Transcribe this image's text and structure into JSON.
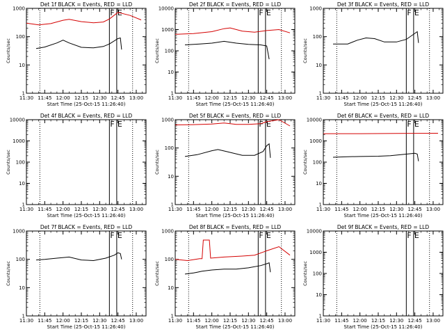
{
  "chart_data": [
    {
      "type": "line",
      "title": "Det 1f BLACK = Events, RED = LLD",
      "ylabel": "Counts/sec",
      "xlabel": "Start Time (25-Oct-15 11:26:40)",
      "xlim": [
        "11:30",
        "13:08"
      ],
      "xticks": [
        "11:30",
        "11:45",
        "12:00",
        "12:15",
        "12:30",
        "12:45",
        "13:00"
      ],
      "ylog": true,
      "ylim": [
        1,
        1000
      ],
      "yticks": [
        "1",
        "10",
        "100",
        "1000"
      ],
      "dotted_lines": [
        "11:41",
        "12:57"
      ],
      "solid_lines": [
        "12:38",
        "12:44"
      ],
      "markers": [
        {
          "at": "12:38",
          "text": "F"
        },
        {
          "at": "12:44",
          "text": "E"
        }
      ],
      "series": [
        {
          "color": "#d40000",
          "points": [
            [
              "11:30",
              300
            ],
            [
              "11:40",
              260
            ],
            [
              "11:50",
              290
            ],
            [
              "12:00",
              380
            ],
            [
              "12:05",
              410
            ],
            [
              "12:15",
              340
            ],
            [
              "12:25",
              310
            ],
            [
              "12:33",
              330
            ],
            [
              "12:38",
              420
            ],
            [
              "12:45",
              720
            ],
            [
              "12:55",
              560
            ],
            [
              "13:04",
              390
            ]
          ]
        },
        {
          "color": "#000000",
          "points": [
            [
              "11:38",
              38
            ],
            [
              "11:45",
              43
            ],
            [
              "11:55",
              60
            ],
            [
              "12:00",
              75
            ],
            [
              "12:05",
              60
            ],
            [
              "12:15",
              42
            ],
            [
              "12:25",
              40
            ],
            [
              "12:33",
              45
            ],
            [
              "12:38",
              55
            ],
            [
              "12:45",
              85
            ],
            [
              "12:47",
              90
            ],
            [
              "12:48",
              35
            ]
          ]
        }
      ]
    },
    {
      "type": "line",
      "title": "Det 2f BLACK = Events, RED = LLD",
      "ylabel": "Counts/sec",
      "xlabel": "Start Time (25-Oct-15 11:26:40)",
      "xlim": [
        "11:30",
        "13:08"
      ],
      "xticks": [
        "11:30",
        "11:45",
        "12:00",
        "12:15",
        "12:30",
        "12:45",
        "13:00"
      ],
      "ylog": true,
      "ylim": [
        1,
        10000
      ],
      "yticks": [
        "1",
        "10",
        "100",
        "1000",
        "10000"
      ],
      "dotted_lines": [
        "11:41",
        "12:57"
      ],
      "solid_lines": [
        "12:38",
        "12:44"
      ],
      "markers": [
        {
          "at": "12:38",
          "text": "F"
        },
        {
          "at": "12:44",
          "text": "E"
        }
      ],
      "series": [
        {
          "color": "#d40000",
          "points": [
            [
              "11:30",
              600
            ],
            [
              "11:45",
              650
            ],
            [
              "12:00",
              800
            ],
            [
              "12:10",
              1100
            ],
            [
              "12:15",
              1200
            ],
            [
              "12:25",
              850
            ],
            [
              "12:35",
              750
            ],
            [
              "12:45",
              900
            ],
            [
              "12:55",
              1000
            ],
            [
              "13:04",
              700
            ]
          ]
        },
        {
          "color": "#000000",
          "points": [
            [
              "11:38",
              190
            ],
            [
              "11:50",
              210
            ],
            [
              "12:00",
              230
            ],
            [
              "12:10",
              280
            ],
            [
              "12:20",
              230
            ],
            [
              "12:30",
              200
            ],
            [
              "12:40",
              190
            ],
            [
              "12:45",
              170
            ],
            [
              "12:47",
              40
            ]
          ]
        }
      ]
    },
    {
      "type": "line",
      "title": "Det 3f BLACK = Events, RED = LLD",
      "ylabel": "Counts/sec",
      "xlabel": "Start Time (25-Oct-15 11:26:40)",
      "xlim": [
        "11:30",
        "13:08"
      ],
      "xticks": [
        "11:30",
        "11:45",
        "12:00",
        "12:15",
        "12:30",
        "12:45",
        "13:00"
      ],
      "ylog": true,
      "ylim": [
        1,
        1000
      ],
      "yticks": [
        "1",
        "10",
        "100",
        "1000"
      ],
      "dotted_lines": [
        "11:41",
        "12:57"
      ],
      "solid_lines": [
        "12:38",
        "12:44"
      ],
      "markers": [
        {
          "at": "12:38",
          "text": "F"
        },
        {
          "at": "12:44",
          "text": "E"
        }
      ],
      "series": [
        {
          "color": "#000000",
          "points": [
            [
              "11:38",
              55
            ],
            [
              "11:50",
              55
            ],
            [
              "11:58",
              75
            ],
            [
              "12:05",
              90
            ],
            [
              "12:12",
              85
            ],
            [
              "12:20",
              65
            ],
            [
              "12:30",
              65
            ],
            [
              "12:38",
              80
            ],
            [
              "12:45",
              130
            ],
            [
              "12:47",
              150
            ],
            [
              "12:48",
              60
            ]
          ]
        }
      ]
    },
    {
      "type": "line",
      "title": "Det 4f BLACK = Events, RED = LLD",
      "ylabel": "Counts/sec",
      "xlabel": "Start Time (25-Oct-15 11:26:40)",
      "xlim": [
        "11:30",
        "13:08"
      ],
      "xticks": [
        "11:30",
        "11:45",
        "12:00",
        "12:15",
        "12:30",
        "12:45",
        "13:00"
      ],
      "ylog": true,
      "ylim": [
        1,
        10000
      ],
      "yticks": [
        "1",
        "10",
        "100",
        "1000",
        "10000"
      ],
      "dotted_lines": [
        "11:41",
        "12:57"
      ],
      "solid_lines": [
        "12:38",
        "12:44"
      ],
      "markers": [
        {
          "at": "12:38",
          "text": "F"
        },
        {
          "at": "12:44",
          "text": "E"
        }
      ],
      "series": []
    },
    {
      "type": "line",
      "title": "Det 5f BLACK = Events, RED = LLD",
      "ylabel": "Counts/sec",
      "xlabel": "Start Time (25-Oct-15 11:26:40)",
      "xlim": [
        "11:30",
        "13:08"
      ],
      "xticks": [
        "11:30",
        "11:45",
        "12:00",
        "12:15",
        "12:30",
        "12:45",
        "13:00"
      ],
      "ylog": true,
      "ylim": [
        1,
        1000
      ],
      "yticks": [
        "1",
        "10",
        "100",
        "1000"
      ],
      "dotted_lines": [
        "11:41",
        "12:57"
      ],
      "solid_lines": [
        "12:38",
        "12:44"
      ],
      "markers": [
        {
          "at": "12:38",
          "text": "F"
        },
        {
          "at": "12:44",
          "text": "E"
        }
      ],
      "series": [
        {
          "color": "#d40000",
          "points": [
            [
              "11:30",
              650
            ],
            [
              "11:45",
              670
            ],
            [
              "12:00",
              700
            ],
            [
              "12:10",
              760
            ],
            [
              "12:20",
              680
            ],
            [
              "12:30",
              680
            ],
            [
              "12:40",
              720
            ],
            [
              "12:45",
              850
            ],
            [
              "12:55",
              1000
            ],
            [
              "13:04",
              600
            ]
          ]
        },
        {
          "color": "#000000",
          "points": [
            [
              "11:38",
              50
            ],
            [
              "11:48",
              58
            ],
            [
              "12:00",
              80
            ],
            [
              "12:05",
              88
            ],
            [
              "12:12",
              75
            ],
            [
              "12:25",
              55
            ],
            [
              "12:35",
              55
            ],
            [
              "12:42",
              75
            ],
            [
              "12:45",
              120
            ],
            [
              "12:47",
              140
            ],
            [
              "12:48",
              45
            ]
          ]
        }
      ]
    },
    {
      "type": "line",
      "title": "Det 6f BLACK = Events, RED = LLD",
      "ylabel": "Counts/sec",
      "xlabel": "Start Time (25-Oct-15 11:26:40)",
      "xlim": [
        "11:30",
        "13:08"
      ],
      "xticks": [
        "11:30",
        "11:45",
        "12:00",
        "12:15",
        "12:30",
        "12:45",
        "13:00"
      ],
      "ylog": true,
      "ylim": [
        1,
        10000
      ],
      "yticks": [
        "1",
        "10",
        "100",
        "1000",
        "10000"
      ],
      "dotted_lines": [
        "11:41",
        "12:57"
      ],
      "solid_lines": [
        "12:38",
        "12:44"
      ],
      "markers": [
        {
          "at": "12:38",
          "text": "F"
        },
        {
          "at": "12:44",
          "text": "E"
        }
      ],
      "series": [
        {
          "color": "#d40000",
          "points": [
            [
              "11:30",
              2200
            ],
            [
              "12:00",
              2200
            ],
            [
              "12:30",
              2250
            ],
            [
              "13:04",
              2300
            ]
          ]
        },
        {
          "color": "#000000",
          "points": [
            [
              "11:38",
              170
            ],
            [
              "11:50",
              180
            ],
            [
              "12:00",
              185
            ],
            [
              "12:15",
              190
            ],
            [
              "12:25",
              200
            ],
            [
              "12:35",
              230
            ],
            [
              "12:45",
              260
            ],
            [
              "12:47",
              240
            ],
            [
              "12:48",
              110
            ]
          ]
        }
      ]
    },
    {
      "type": "line",
      "title": "Det 7f BLACK = Events, RED = LLD",
      "ylabel": "Counts/sec",
      "xlabel": "Start Time (25-Oct-15 11:26:40)",
      "xlim": [
        "11:30",
        "13:08"
      ],
      "xticks": [
        "11:30",
        "11:45",
        "12:00",
        "12:15",
        "12:30",
        "12:45",
        "13:00"
      ],
      "ylog": true,
      "ylim": [
        1,
        1000
      ],
      "yticks": [
        "1",
        "10",
        "100",
        "1000"
      ],
      "dotted_lines": [
        "11:41",
        "12:57"
      ],
      "solid_lines": [
        "12:38",
        "12:44"
      ],
      "markers": [
        {
          "at": "12:38",
          "text": "F"
        },
        {
          "at": "12:44",
          "text": "E"
        }
      ],
      "series": [
        {
          "color": "#000000",
          "points": [
            [
              "11:38",
              95
            ],
            [
              "11:45",
              100
            ],
            [
              "11:55",
              110
            ],
            [
              "12:05",
              120
            ],
            [
              "12:15",
              95
            ],
            [
              "12:25",
              90
            ],
            [
              "12:35",
              110
            ],
            [
              "12:42",
              140
            ],
            [
              "12:45",
              170
            ],
            [
              "12:47",
              160
            ],
            [
              "12:48",
              100
            ]
          ]
        }
      ]
    },
    {
      "type": "line",
      "title": "Det 8f BLACK = Events, RED = LLD",
      "ylabel": "Counts/sec",
      "xlabel": "Start Time (25-Oct-15 11:26:40)",
      "xlim": [
        "11:30",
        "13:08"
      ],
      "xticks": [
        "11:30",
        "11:45",
        "12:00",
        "12:15",
        "12:30",
        "12:45",
        "13:00"
      ],
      "ylog": true,
      "ylim": [
        1,
        1000
      ],
      "yticks": [
        "1",
        "10",
        "100",
        "1000"
      ],
      "dotted_lines": [
        "11:41",
        "12:57"
      ],
      "solid_lines": [
        "12:38",
        "12:44"
      ],
      "markers": [
        {
          "at": "12:38",
          "text": "F"
        },
        {
          "at": "12:44",
          "text": "E"
        }
      ],
      "series": [
        {
          "color": "#d40000",
          "points": [
            [
              "11:30",
              100
            ],
            [
              "11:40",
              90
            ],
            [
              "11:50",
              105
            ],
            [
              "11:52",
              105
            ],
            [
              "11:53",
              480
            ],
            [
              "11:58",
              480
            ],
            [
              "11:59",
              110
            ],
            [
              "12:10",
              120
            ],
            [
              "12:25",
              130
            ],
            [
              "12:35",
              140
            ],
            [
              "12:45",
              200
            ],
            [
              "12:55",
              280
            ],
            [
              "13:04",
              140
            ]
          ]
        },
        {
          "color": "#000000",
          "points": [
            [
              "11:38",
              30
            ],
            [
              "11:45",
              33
            ],
            [
              "11:48",
              35
            ],
            [
              "11:52",
              38
            ],
            [
              "12:00",
              42
            ],
            [
              "12:10",
              45
            ],
            [
              "12:20",
              45
            ],
            [
              "12:30",
              50
            ],
            [
              "12:40",
              60
            ],
            [
              "12:45",
              70
            ],
            [
              "12:47",
              75
            ],
            [
              "12:48",
              35
            ]
          ]
        }
      ]
    },
    {
      "type": "line",
      "title": "Det 9f BLACK = Events, RED = LLD",
      "ylabel": "Counts/sec",
      "xlabel": "Start Time (25-Oct-15 11:26:40)",
      "xlim": [
        "11:30",
        "13:08"
      ],
      "xticks": [
        "11:30",
        "11:45",
        "12:00",
        "12:15",
        "12:30",
        "12:45",
        "13:00"
      ],
      "ylog": true,
      "ylim": [
        1,
        10000
      ],
      "yticks": [
        "1",
        "10",
        "100",
        "1000",
        "10000"
      ],
      "dotted_lines": [
        "11:41",
        "12:57"
      ],
      "solid_lines": [
        "12:38",
        "12:44"
      ],
      "markers": [
        {
          "at": "12:38",
          "text": "F"
        },
        {
          "at": "12:44",
          "text": "E"
        }
      ],
      "series": []
    }
  ]
}
